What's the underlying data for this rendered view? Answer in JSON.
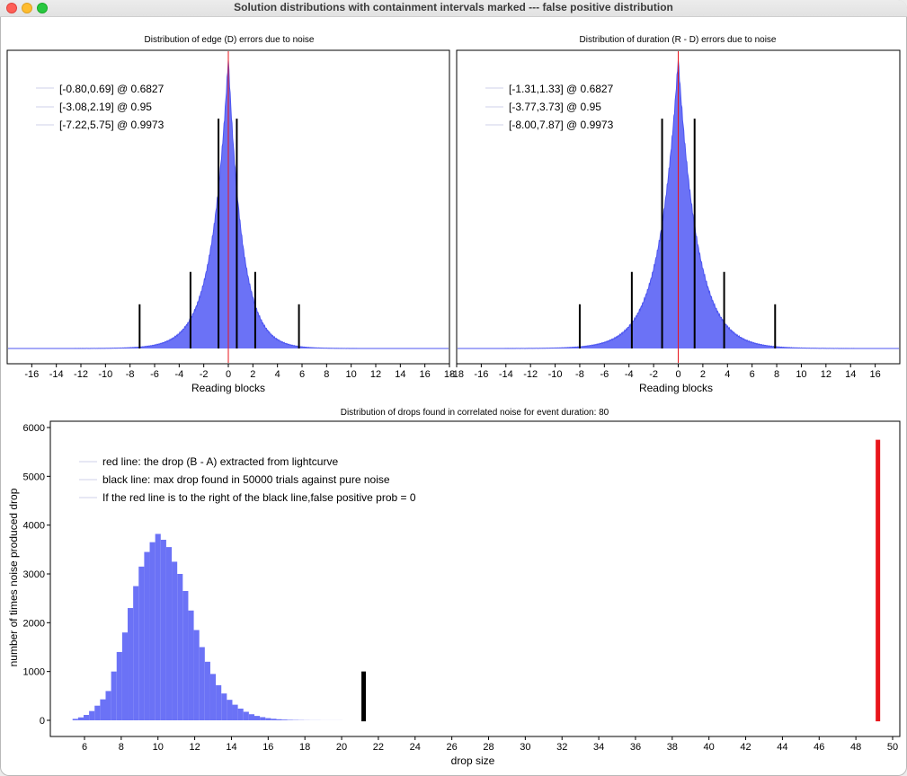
{
  "window": {
    "title": "Solution distributions with containment intervals marked --- false positive distribution"
  },
  "colors": {
    "histogram_fill": "#6b72f6",
    "histogram_line": "#4c55f0",
    "red_line": "#e8151b",
    "black_line": "#000000"
  },
  "panels": {
    "edge": {
      "title": "Distribution of edge (D) errors due to noise",
      "xlabel": "Reading blocks",
      "legend": [
        "[-0.80,0.69] @ 0.6827",
        "[-3.08,2.19] @ 0.95",
        "[-7.22,5.75] @ 0.9973"
      ]
    },
    "duration": {
      "title": "Distribution of duration (R - D) errors due to noise",
      "xlabel": "Reading blocks",
      "legend": [
        "[-1.31,1.33] @ 0.6827",
        "[-3.77,3.73] @ 0.95",
        "[-8.00,7.87] @ 0.9973"
      ]
    },
    "drops": {
      "title": "Distribution of drops found in correlated noise for event duration: 80",
      "xlabel": "drop size",
      "ylabel": "number of times noise produced drop",
      "legend": [
        "red line: the drop (B - A) extracted from lightcurve",
        "black line: max drop found in 50000 trials against pure noise",
        "If the red line is to the right of the black line,false positive prob = 0"
      ]
    }
  },
  "chart_data": [
    {
      "type": "area",
      "title": "Distribution of edge (D) errors due to noise",
      "xlabel": "Reading blocks",
      "ylabel": "",
      "xlim": [
        -18,
        18
      ],
      "x_ticks": [
        "-16",
        "-14",
        "-12",
        "-10",
        "-8",
        "-6",
        "-4",
        "-2",
        "0",
        "2",
        "4",
        "6",
        "8",
        "10",
        "12",
        "14",
        "16",
        "18"
      ],
      "distribution_profile": {
        "center": 0,
        "scale_left": 1.35,
        "scale_right": 1.15,
        "peak_fraction": 0.98
      },
      "interval_lines": [
        {
          "x": -0.8,
          "height_fraction": 0.78
        },
        {
          "x": 0.69,
          "height_fraction": 0.78
        },
        {
          "x": -3.08,
          "height_fraction": 0.26
        },
        {
          "x": 2.19,
          "height_fraction": 0.26
        },
        {
          "x": -7.22,
          "height_fraction": 0.15
        },
        {
          "x": 5.75,
          "height_fraction": 0.15
        }
      ],
      "marker_x": 0,
      "legend": [
        "[-0.80,0.69] @ 0.6827",
        "[-3.08,2.19] @ 0.95",
        "[-7.22,5.75] @ 0.9973"
      ]
    },
    {
      "type": "area",
      "title": "Distribution of duration (R - D) errors due to noise",
      "xlabel": "Reading blocks",
      "ylabel": "",
      "xlim": [
        -18,
        18
      ],
      "x_ticks": [
        "-18",
        "-16",
        "-14",
        "-12",
        "-10",
        "-8",
        "-6",
        "-4",
        "-2",
        "0",
        "2",
        "4",
        "6",
        "8",
        "10",
        "12",
        "14",
        "16"
      ],
      "distribution_profile": {
        "center": 0,
        "scale_left": 1.55,
        "scale_right": 1.55,
        "peak_fraction": 0.98
      },
      "interval_lines": [
        {
          "x": -1.31,
          "height_fraction": 0.78
        },
        {
          "x": 1.33,
          "height_fraction": 0.78
        },
        {
          "x": -3.77,
          "height_fraction": 0.26
        },
        {
          "x": 3.73,
          "height_fraction": 0.26
        },
        {
          "x": -8.0,
          "height_fraction": 0.15
        },
        {
          "x": 7.87,
          "height_fraction": 0.15
        }
      ],
      "marker_x": 0,
      "legend": [
        "[-1.31,1.33] @ 0.6827",
        "[-3.77,3.73] @ 0.95",
        "[-8.00,7.87] @ 0.9973"
      ]
    },
    {
      "type": "bar",
      "title": "Distribution of drops found in correlated noise for event duration: 80",
      "xlabel": "drop size",
      "ylabel": "number of times noise produced drop",
      "xlim": [
        4.5,
        50.5
      ],
      "ylim": [
        -300,
        6100
      ],
      "x_ticks": [
        6,
        8,
        10,
        12,
        14,
        16,
        18,
        20,
        22,
        24,
        26,
        28,
        30,
        32,
        34,
        36,
        38,
        40,
        42,
        44,
        46,
        48,
        50
      ],
      "y_ticks": [
        0,
        1000,
        2000,
        3000,
        4000,
        5000,
        6000
      ],
      "bin_width": 0.3,
      "bins_x": [
        6.0,
        6.3,
        6.6,
        6.9,
        7.2,
        7.5,
        7.8,
        8.1,
        8.4,
        8.7,
        9.0,
        9.3,
        9.6,
        9.9,
        10.2,
        10.5,
        10.8,
        11.1,
        11.4,
        11.7,
        12.0,
        12.3,
        12.6,
        12.9,
        13.2,
        13.5,
        13.8,
        14.1,
        14.4,
        14.7,
        15.0,
        15.3,
        15.6,
        15.9,
        16.2,
        16.5,
        16.8,
        17.1,
        17.4,
        17.7,
        18.0,
        18.3,
        18.6,
        18.9,
        19.2,
        19.5,
        19.8,
        20.1,
        20.4,
        20.7
      ],
      "counts": [
        30,
        60,
        110,
        190,
        300,
        430,
        600,
        1000,
        1400,
        1800,
        2300,
        2750,
        3150,
        3450,
        3650,
        3820,
        3700,
        3550,
        3250,
        3000,
        2650,
        2250,
        1850,
        1500,
        1200,
        950,
        720,
        550,
        420,
        320,
        240,
        175,
        125,
        90,
        65,
        45,
        32,
        22,
        15,
        10,
        7,
        5,
        3,
        2,
        2,
        1,
        1,
        1,
        1,
        0
      ],
      "black_line": {
        "x": 21.2,
        "y_top": 1000
      },
      "red_line": {
        "x": 49.2,
        "y_top": 5750
      },
      "legend": [
        "red line: the drop (B - A) extracted from lightcurve",
        "black line: max drop found in 50000 trials against pure noise",
        "If the red line is to the right of the black line,false positive prob = 0"
      ]
    }
  ]
}
